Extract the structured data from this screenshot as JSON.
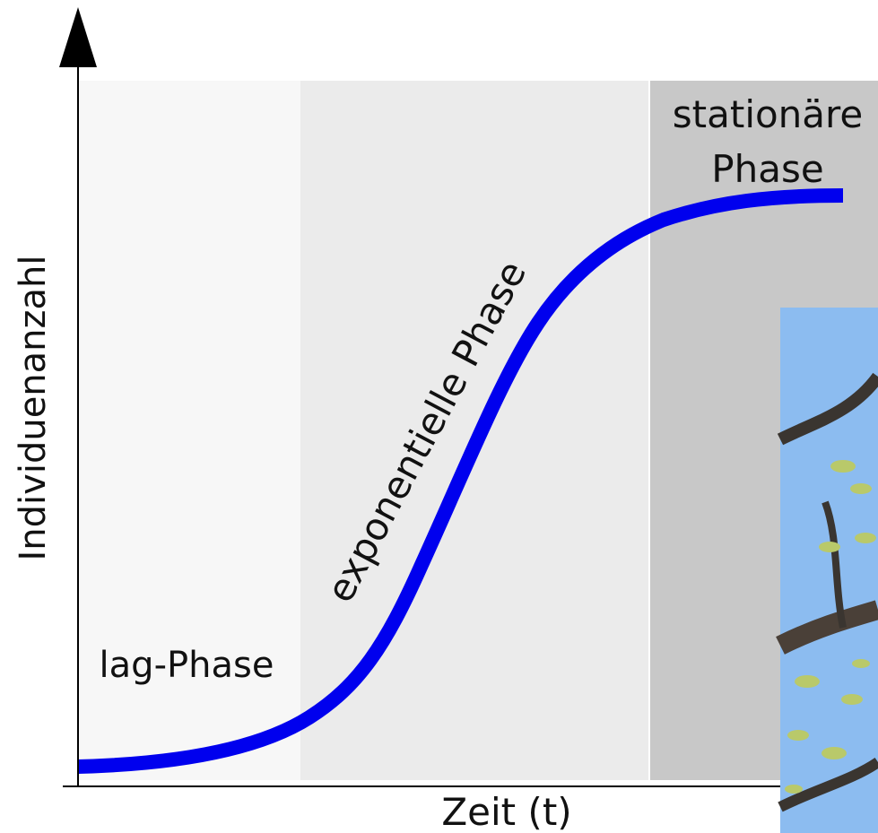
{
  "axes": {
    "y_label": "Individuenanzahl",
    "x_label": "Zeit (t)"
  },
  "phases": {
    "lag": "lag-Phase",
    "exponential": "exponentielle Phase",
    "stationary": [
      "stationäre",
      "Phase"
    ]
  }
}
